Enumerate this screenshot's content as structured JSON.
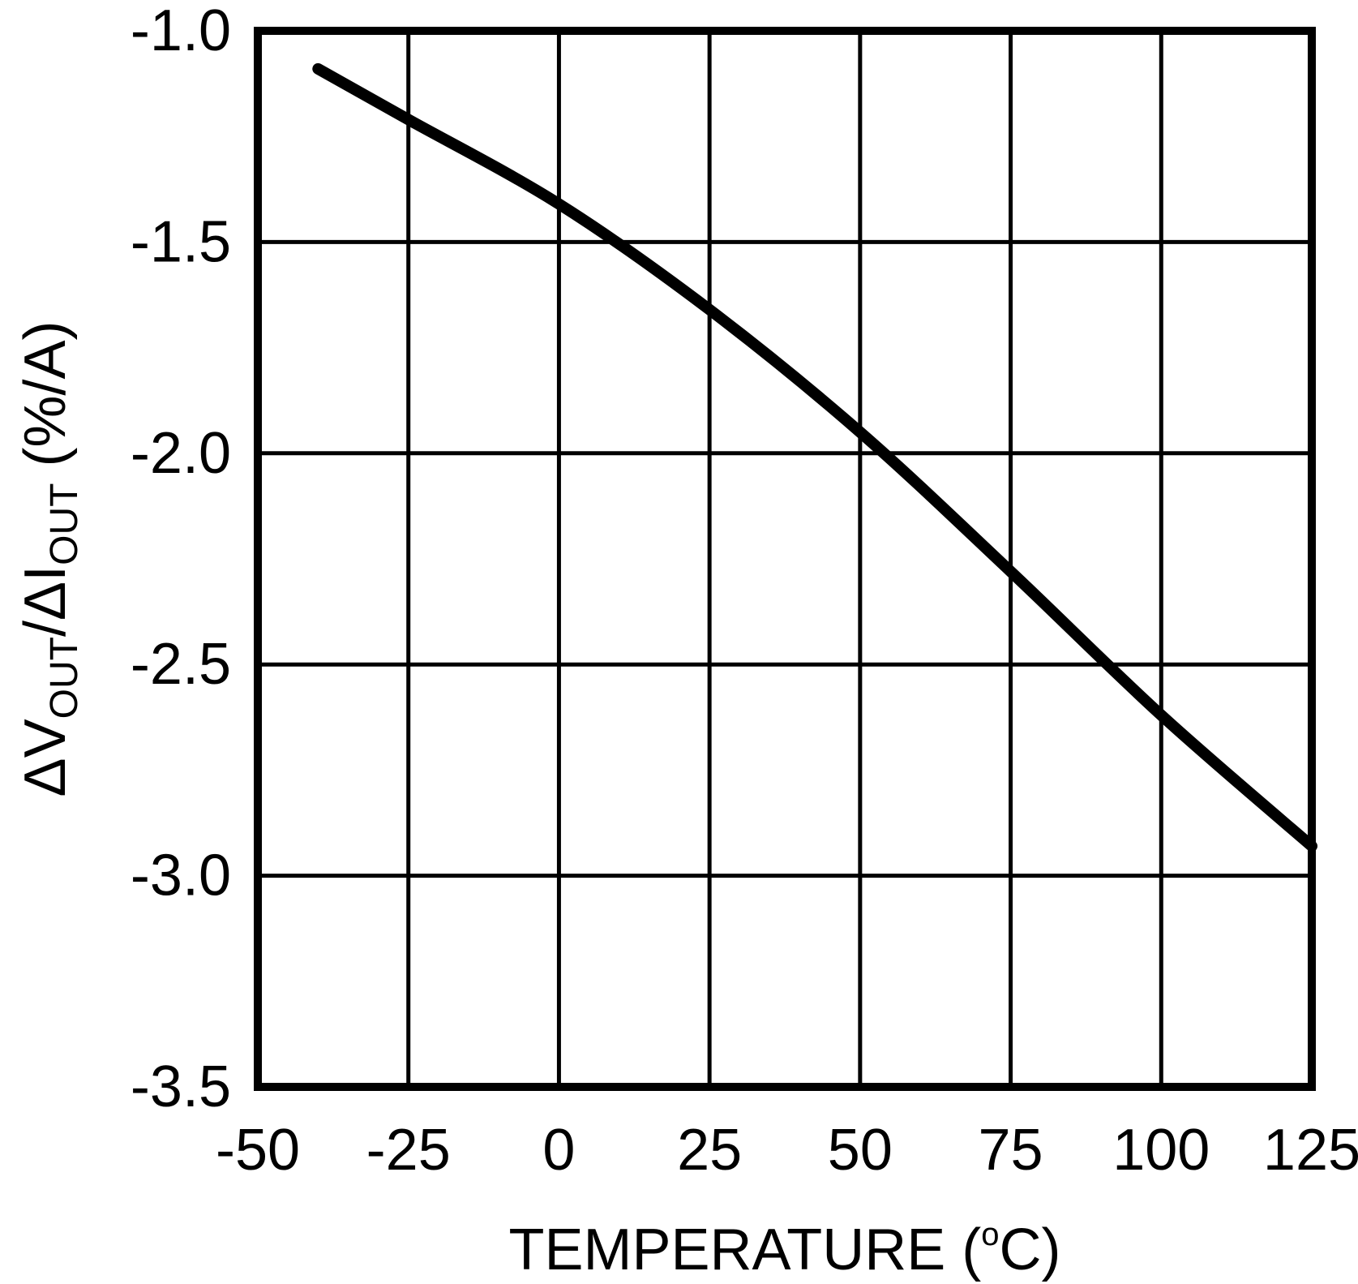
{
  "chart_data": {
    "type": "line",
    "title": "",
    "xlabel": "TEMPERATURE (ºC)",
    "xlabel_parts": [
      {
        "t": "TEMPERATURE ("
      },
      {
        "t": "o",
        "sup": true
      },
      {
        "t": "C)"
      }
    ],
    "ylabel": "ΔV_OUT/ΔI_OUT (%/A)",
    "ylabel_parts": [
      {
        "t": "ΔV"
      },
      {
        "t": "OUT",
        "sub": true
      },
      {
        "t": "/ΔI"
      },
      {
        "t": "OUT",
        "sub": true
      },
      {
        "t": " (%/A)"
      }
    ],
    "xlim": [
      -50,
      125
    ],
    "ylim": [
      -3.5,
      -1.0
    ],
    "xticks": [
      -50,
      -25,
      0,
      25,
      50,
      75,
      100,
      125
    ],
    "yticks": [
      -1.0,
      -1.5,
      -2.0,
      -2.5,
      -3.0,
      -3.5
    ],
    "x_tick_labels": [
      "-50",
      "-25",
      "0",
      "25",
      "50",
      "75",
      "100",
      "125"
    ],
    "y_tick_labels": [
      "-1.0",
      "-1.5",
      "-2.0",
      "-2.5",
      "-3.0",
      "-3.5"
    ],
    "grid": true,
    "legend": false,
    "series": [
      {
        "name": "delta-vout-over-delta-iout",
        "x": [
          -40,
          -25,
          0,
          25,
          50,
          75,
          100,
          125
        ],
        "y": [
          -1.09,
          -1.21,
          -1.41,
          -1.66,
          -1.95,
          -2.28,
          -2.62,
          -2.93
        ]
      }
    ],
    "colors": {
      "background": "#ffffff",
      "line": "#000000",
      "grid": "#000000",
      "border": "#000000",
      "text": "#000000"
    }
  }
}
